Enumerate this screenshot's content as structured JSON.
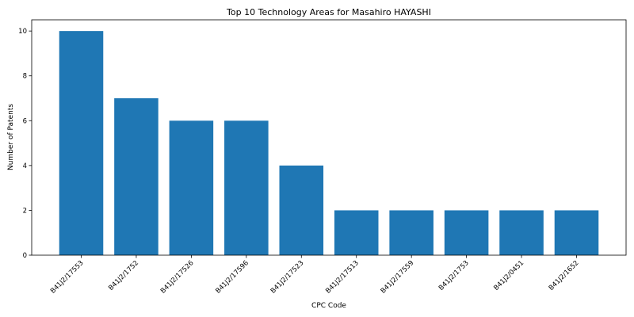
{
  "chart_data": {
    "type": "bar",
    "title": "Top 10 Technology Areas for Masahiro HAYASHI",
    "xlabel": "CPC Code",
    "ylabel": "Number of Patents",
    "categories": [
      "B41J2/17553",
      "B41J2/1752",
      "B41J2/17526",
      "B41J2/17596",
      "B41J2/17523",
      "B41J2/17513",
      "B41J2/17559",
      "B41J2/1753",
      "B41J2/0451",
      "B41J2/1652"
    ],
    "values": [
      10,
      7,
      6,
      6,
      4,
      2,
      2,
      2,
      2,
      2
    ],
    "ylim": [
      0,
      10.5
    ],
    "yticks": [
      0,
      2,
      4,
      6,
      8,
      10
    ],
    "grid": false,
    "bar_color": "#1f77b4"
  }
}
